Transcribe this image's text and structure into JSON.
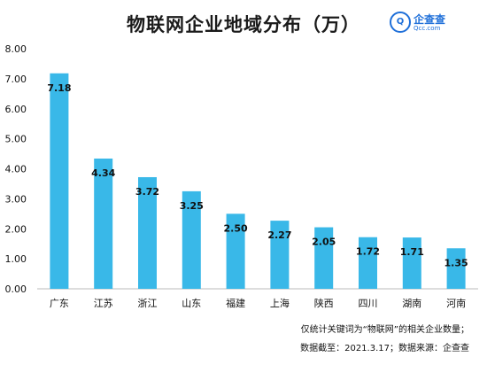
{
  "title": "物联网企业地域分布（万）",
  "logo": {
    "name": "企查查",
    "domain": "Qcc.com"
  },
  "notes": {
    "line1": "仅统计关键词为“物联网”的相关企业数量；",
    "line2": "数据截至：2021.3.17；数据来源：企查查"
  },
  "colors": {
    "bar": "#39b8e8",
    "axis_text": "#111111",
    "grid": "#dddddd"
  },
  "chart_data": {
    "type": "bar",
    "title": "物联网企业地域分布（万）",
    "categories": [
      "广东",
      "江苏",
      "浙江",
      "山东",
      "福建",
      "上海",
      "陕西",
      "四川",
      "湖南",
      "河南"
    ],
    "values": [
      7.18,
      4.34,
      3.72,
      3.25,
      2.5,
      2.27,
      2.05,
      1.72,
      1.71,
      1.35
    ],
    "value_labels": [
      "7.18",
      "4.34",
      "3.72",
      "3.25",
      "2.50",
      "2.27",
      "2.05",
      "1.72",
      "1.71",
      "1.35"
    ],
    "y_ticks": [
      "0.00",
      "1.00",
      "2.00",
      "3.00",
      "4.00",
      "5.00",
      "6.00",
      "7.00",
      "8.00"
    ],
    "xlabel": "",
    "ylabel": "",
    "ylim": [
      0,
      8
    ],
    "grid": false,
    "legend": "none"
  }
}
